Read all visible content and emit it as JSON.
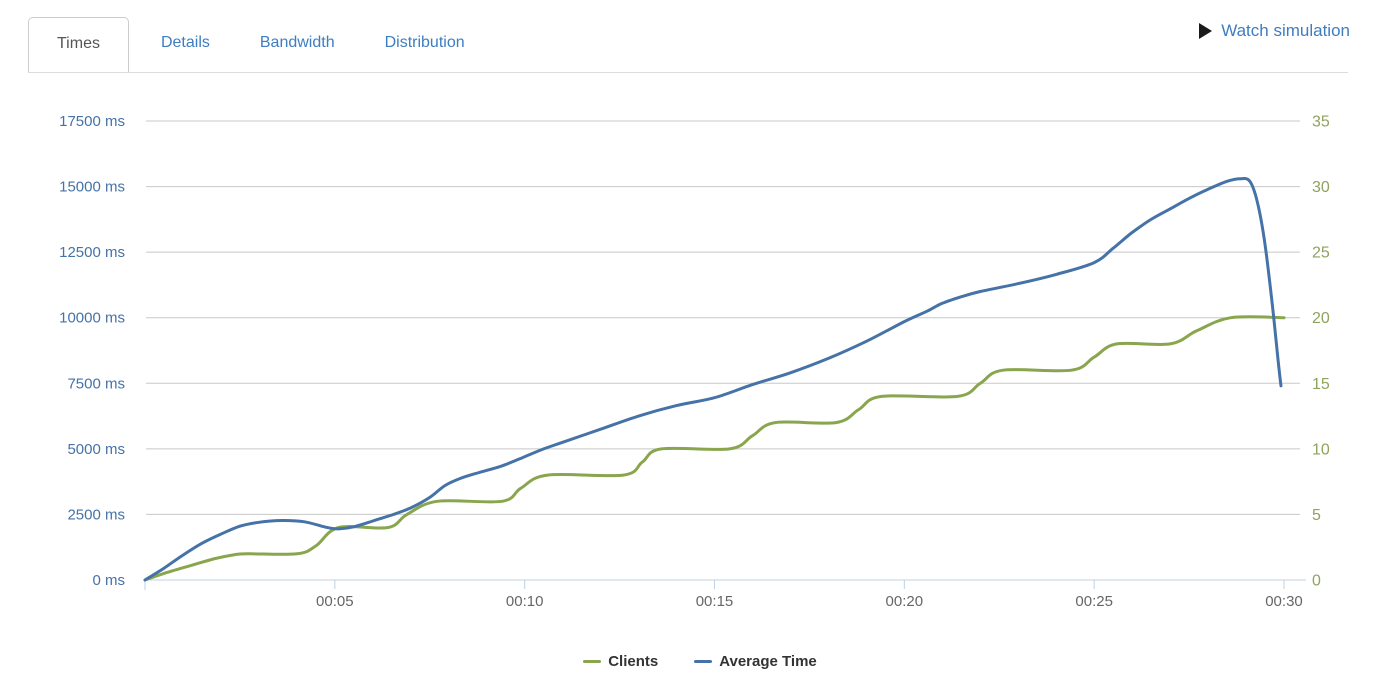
{
  "tabs": [
    {
      "label": "Times",
      "active": true
    },
    {
      "label": "Details",
      "active": false
    },
    {
      "label": "Bandwidth",
      "active": false
    },
    {
      "label": "Distribution",
      "active": false
    }
  ],
  "header": {
    "watch_label": "Watch simulation"
  },
  "colors": {
    "clients": "#89a54e",
    "average_time": "#4572a7",
    "grid": "#c8c8c8",
    "axis_line": "#c0d0e0",
    "left_axis_labels": "#4572a7",
    "right_axis_labels": "#8fa35c",
    "x_axis_labels": "#666666",
    "tab_link": "#3e7dc0",
    "tab_active_text": "#555555",
    "legend_text": "#333333"
  },
  "chart_data": {
    "type": "line",
    "title": "",
    "xlabel": "",
    "x_axis": {
      "tick_labels": [
        "00:05",
        "00:10",
        "00:15",
        "00:20",
        "00:25",
        "00:30"
      ],
      "tick_minutes": [
        5,
        10,
        15,
        20,
        25,
        30
      ],
      "range_minutes": [
        0,
        30
      ]
    },
    "y_left": {
      "unit": "ms",
      "labels": [
        "17500 ms",
        "15000 ms",
        "12500 ms",
        "10000 ms",
        "7500 ms",
        "5000 ms",
        "2500 ms",
        "0 ms"
      ],
      "min": 0,
      "max": 17500
    },
    "y_right": {
      "labels": [
        "35",
        "30",
        "25",
        "20",
        "15",
        "10",
        "5",
        "0"
      ],
      "min": 0,
      "max": 35
    },
    "grid": true,
    "legend_position": "bottom-center",
    "series": [
      {
        "name": "Clients",
        "axis": "right",
        "color": "#89a54e",
        "points": [
          [
            0,
            0
          ],
          [
            0.5,
            0.5
          ],
          [
            1.2,
            1.1
          ],
          [
            1.8,
            1.6
          ],
          [
            2.3,
            1.9
          ],
          [
            2.7,
            2
          ],
          [
            4.0,
            2
          ],
          [
            4.5,
            2.6
          ],
          [
            5.1,
            4
          ],
          [
            6.4,
            4
          ],
          [
            6.9,
            5
          ],
          [
            7.7,
            6
          ],
          [
            9.4,
            6
          ],
          [
            9.9,
            7
          ],
          [
            10.6,
            8
          ],
          [
            12.6,
            8
          ],
          [
            13.1,
            9
          ],
          [
            13.6,
            10
          ],
          [
            15.4,
            10
          ],
          [
            16.0,
            11
          ],
          [
            16.6,
            12
          ],
          [
            18.2,
            12
          ],
          [
            18.8,
            13
          ],
          [
            19.4,
            14
          ],
          [
            21.4,
            14
          ],
          [
            22.0,
            15
          ],
          [
            22.6,
            16
          ],
          [
            24.4,
            16
          ],
          [
            25.0,
            17
          ],
          [
            25.6,
            18
          ],
          [
            27.0,
            18
          ],
          [
            27.7,
            19
          ],
          [
            28.6,
            20
          ],
          [
            30,
            20
          ]
        ]
      },
      {
        "name": "Average Time",
        "axis": "left",
        "color": "#4572a7",
        "points": [
          [
            0,
            0
          ],
          [
            0.5,
            450
          ],
          [
            1,
            950
          ],
          [
            1.5,
            1400
          ],
          [
            2,
            1750
          ],
          [
            2.5,
            2050
          ],
          [
            3,
            2200
          ],
          [
            3.6,
            2270
          ],
          [
            4.2,
            2220
          ],
          [
            4.8,
            2000
          ],
          [
            5.1,
            1950
          ],
          [
            5.5,
            2030
          ],
          [
            6,
            2250
          ],
          [
            6.5,
            2480
          ],
          [
            7,
            2750
          ],
          [
            7.5,
            3150
          ],
          [
            7.9,
            3600
          ],
          [
            8.3,
            3870
          ],
          [
            8.8,
            4100
          ],
          [
            9.4,
            4350
          ],
          [
            10,
            4700
          ],
          [
            10.5,
            5000
          ],
          [
            11,
            5250
          ],
          [
            12,
            5750
          ],
          [
            13,
            6250
          ],
          [
            14,
            6650
          ],
          [
            15,
            6950
          ],
          [
            16,
            7450
          ],
          [
            17,
            7900
          ],
          [
            18,
            8450
          ],
          [
            19,
            9100
          ],
          [
            20,
            9850
          ],
          [
            20.6,
            10250
          ],
          [
            21,
            10550
          ],
          [
            21.5,
            10800
          ],
          [
            22,
            11000
          ],
          [
            23,
            11300
          ],
          [
            24,
            11650
          ],
          [
            25,
            12100
          ],
          [
            25.5,
            12650
          ],
          [
            26,
            13250
          ],
          [
            26.5,
            13750
          ],
          [
            27,
            14150
          ],
          [
            27.5,
            14550
          ],
          [
            28,
            14900
          ],
          [
            28.5,
            15200
          ],
          [
            28.85,
            15300
          ],
          [
            29.1,
            15200
          ],
          [
            29.3,
            14400
          ],
          [
            29.5,
            12800
          ],
          [
            29.7,
            10400
          ],
          [
            29.85,
            8300
          ],
          [
            29.92,
            7400
          ]
        ]
      }
    ]
  }
}
